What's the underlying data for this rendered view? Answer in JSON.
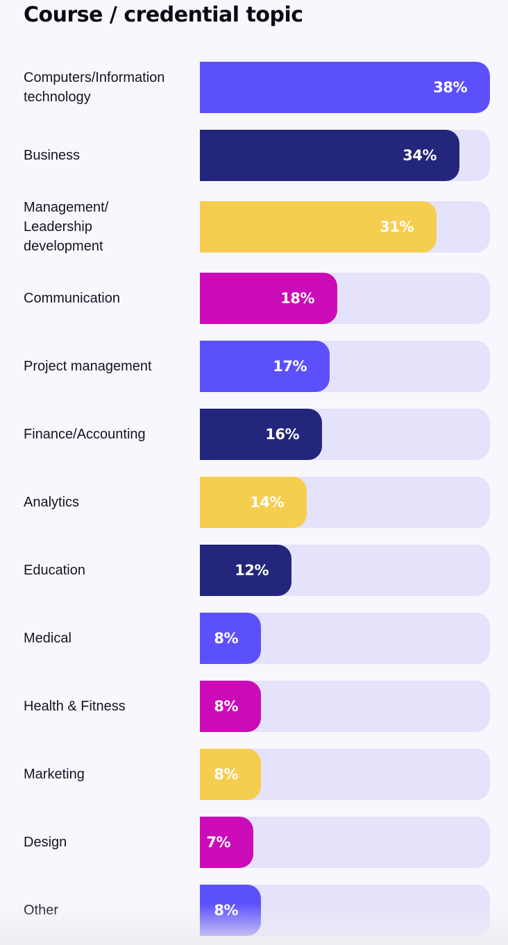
{
  "chart_data": {
    "type": "bar",
    "orientation": "horizontal",
    "title": "Course / credential topic",
    "xlim": [
      0,
      38
    ],
    "grid": false,
    "categories": [
      "Computers/Information technology",
      "Business",
      "Management/ Leadership development",
      "Communication",
      "Project management",
      "Finance/Accounting",
      "Analytics",
      "Education",
      "Medical",
      "Health & Fitness",
      "Marketing",
      "Design",
      "Other"
    ],
    "label_lines": [
      [
        "Computers/Information",
        "technology"
      ],
      [
        "Business"
      ],
      [
        "Management/",
        "Leadership",
        "development"
      ],
      [
        "Communication"
      ],
      [
        "Project management"
      ],
      [
        "Finance/Accounting"
      ],
      [
        "Analytics"
      ],
      [
        "Education"
      ],
      [
        "Medical"
      ],
      [
        "Health & Fitness"
      ],
      [
        "Marketing"
      ],
      [
        "Design"
      ],
      [
        "Other"
      ]
    ],
    "values": [
      38,
      34,
      31,
      18,
      17,
      16,
      14,
      12,
      8,
      8,
      8,
      7,
      8
    ],
    "data_labels": [
      "38%",
      "34%",
      "31%",
      "18%",
      "17%",
      "16%",
      "14%",
      "12%",
      "8%",
      "8%",
      "8%",
      "7%",
      "8%"
    ],
    "bar_colors": [
      "#5c50fc",
      "#23267a",
      "#f5ce4f",
      "#cc0bb8",
      "#5c50fc",
      "#23267a",
      "#f5ce4f",
      "#23267a",
      "#5c50fc",
      "#cc0bb8",
      "#f5ce4f",
      "#cc0bb8",
      "#5c50fc"
    ],
    "track_color": "#e5e3fb"
  }
}
